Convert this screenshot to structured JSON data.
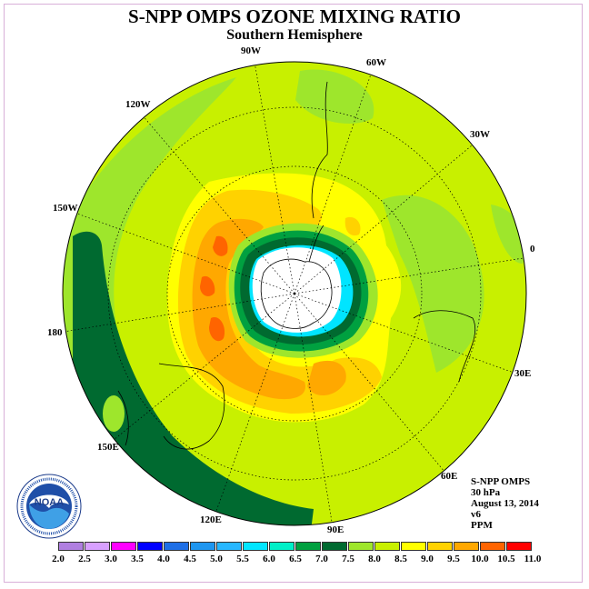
{
  "header": {
    "title": "S-NPP OMPS OZONE MIXING RATIO",
    "subtitle": "Southern Hemisphere"
  },
  "longitude_labels": [
    "90W",
    "60W",
    "30W",
    "0",
    "30E",
    "60E",
    "90E",
    "120E",
    "150E",
    "180",
    "150W",
    "120W"
  ],
  "info": {
    "instrument": "S-NPP OMPS",
    "level": "30 hPa",
    "date": "August 13, 2014",
    "version": "v6",
    "units": "PPM"
  },
  "logo": {
    "icon": "noaa-logo-icon",
    "text": "NOAA",
    "ring_text": "NATIONAL OCEANIC AND ATMOSPHERIC ADMINISTRATION · U.S. DEPARTMENT OF COMMERCE"
  },
  "colorbar": {
    "ticks": [
      "2.0",
      "2.5",
      "3.0",
      "3.5",
      "4.0",
      "4.5",
      "5.0",
      "5.5",
      "6.0",
      "6.5",
      "7.0",
      "7.5",
      "8.0",
      "8.5",
      "9.0",
      "9.5",
      "10.0",
      "10.5",
      "11.0"
    ],
    "colors": [
      "#b07fe0",
      "#d8a0ff",
      "#ff00ff",
      "#0000ff",
      "#1e6fe6",
      "#1e96f0",
      "#27b7ff",
      "#00e5ff",
      "#00f0c8",
      "#00a040",
      "#006a30",
      "#9ee62c",
      "#c8f000",
      "#ffff00",
      "#ffd200",
      "#ffa800",
      "#ff6400",
      "#ff0000",
      "#8c5a3c"
    ]
  },
  "map": {
    "projection": "south-polar-stereographic",
    "field_colors": {
      "outer": "#c8f000",
      "band_75": "#9ee62c",
      "band_85": "#ffff00",
      "band_90": "#ffd200",
      "band_95": "#ffa800",
      "band_100": "#ff6400",
      "ring_70": "#00a040",
      "ring_65": "#006a30",
      "ring_55": "#00e5ff",
      "pole": "#ffffff"
    }
  }
}
